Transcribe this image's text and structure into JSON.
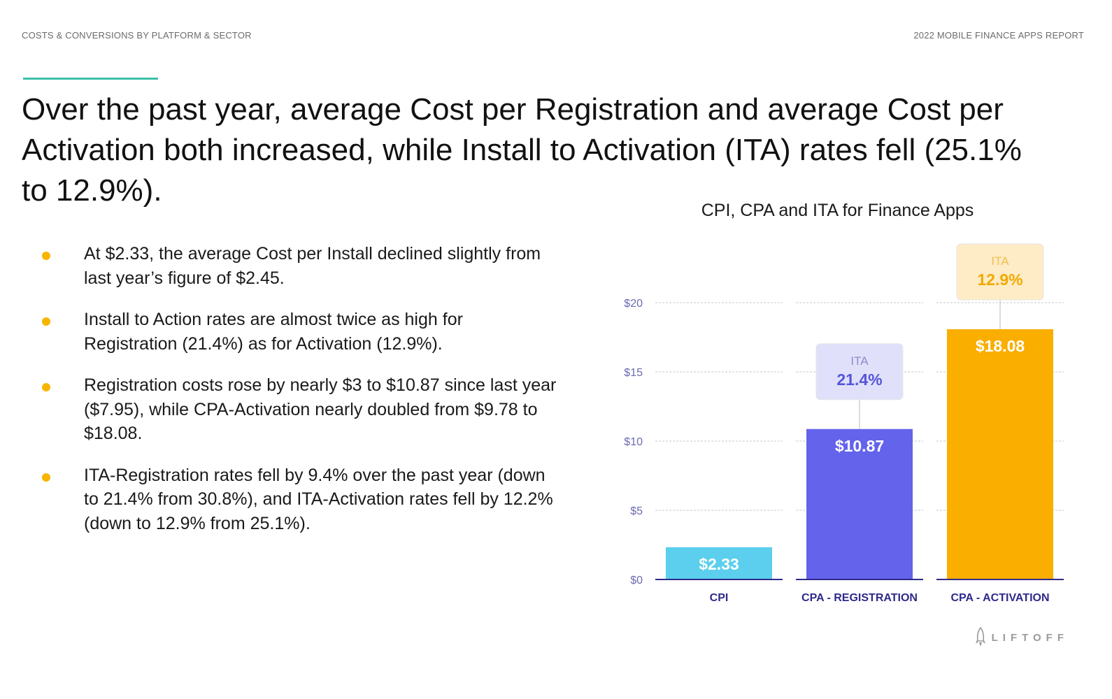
{
  "header": {
    "section": "COSTS & CONVERSIONS BY PLATFORM & SECTOR",
    "report": "2022 MOBILE FINANCE APPS REPORT"
  },
  "headline": "Over the past year, average Cost per Registration and average Cost per Activation both increased, while Install to Activation (ITA) rates fell (25.1% to 12.9%).",
  "bullets": [
    "At $2.33, the average Cost per Install declined slightly from last year’s figure of $2.45.",
    "Install to Action rates are almost twice as high for Registration (21.4%) as for Activation (12.9%).",
    "Registration costs rose by nearly $3 to $10.87 since last year ($7.95), while CPA-Activation nearly doubled from $9.78 to $18.08.",
    "ITA-Registration rates fell by 9.4% over the past year (down to 21.4% from 30.8%), and ITA-Activation rates fell by 12.2% (down to 12.9% from 25.1%)."
  ],
  "logo": "LIFTOFF",
  "colors": {
    "accent_rule": "#3dbfa7",
    "bullet": "#f7b500",
    "axis_label": "#2e2a8a",
    "tick": "#6b6bb0"
  },
  "chart_data": {
    "type": "bar",
    "title": "CPI, CPA and ITA for Finance Apps",
    "categories": [
      "CPI",
      "CPA - REGISTRATION",
      "CPA - ACTIVATION"
    ],
    "values": [
      2.33,
      10.87,
      18.08
    ],
    "value_labels": [
      "$2.33",
      "$10.87",
      "$18.08"
    ],
    "bar_colors": [
      "#5bcfed",
      "#6363ec",
      "#f9ae00"
    ],
    "ylim": [
      0,
      20
    ],
    "yticks": [
      0,
      5,
      10,
      15,
      20
    ],
    "ytick_labels": [
      "$0",
      "$5",
      "$10",
      "$15",
      "$20"
    ],
    "grid": true,
    "annotations": [
      {
        "category": "CPA - REGISTRATION",
        "label": "ITA",
        "value": "21.4%",
        "bg": "#e0e0fb",
        "label_color": "#8c8cc8",
        "value_color": "#5555d8"
      },
      {
        "category": "CPA - ACTIVATION",
        "label": "ITA",
        "value": "12.9%",
        "bg": "#fdecc6",
        "label_color": "#f3bd4d",
        "value_color": "#f2a900"
      }
    ]
  }
}
